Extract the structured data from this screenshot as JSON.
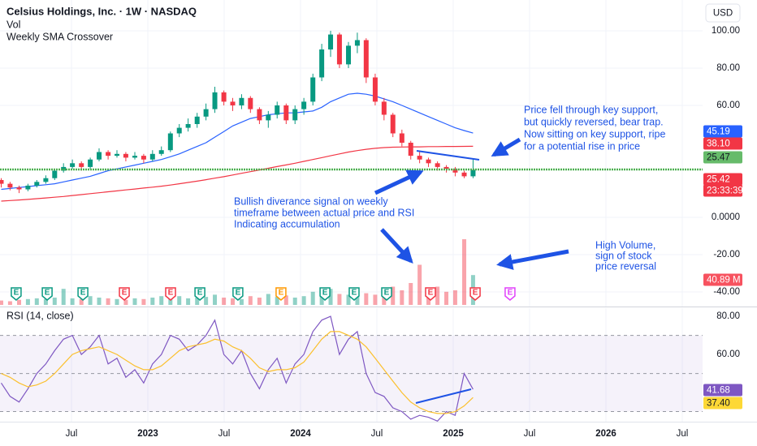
{
  "chart_data": {
    "type": "candlestick",
    "title": "Celsius Holdings, Inc. · 1W · NASDAQ",
    "legend_items": [
      "Vol",
      "Weekly SMA Crossover"
    ],
    "currency": "USD",
    "x": [
      2022.04,
      2022.098,
      2022.157,
      2022.215,
      2022.273,
      2022.332,
      2022.39,
      2022.448,
      2022.506,
      2022.565,
      2022.623,
      2022.681,
      2022.74,
      2022.798,
      2022.856,
      2022.915,
      2022.973,
      2023.031,
      2023.089,
      2023.148,
      2023.206,
      2023.264,
      2023.323,
      2023.381,
      2023.439,
      2023.498,
      2023.556,
      2023.614,
      2023.672,
      2023.731,
      2023.789,
      2023.847,
      2023.906,
      2023.964,
      2024.022,
      2024.081,
      2024.139,
      2024.197,
      2024.255,
      2024.314,
      2024.372,
      2024.43,
      2024.489,
      2024.547,
      2024.605,
      2024.664,
      2024.722,
      2024.78,
      2024.838,
      2024.897,
      2024.955,
      2025.013,
      2025.072,
      2025.13
    ],
    "open": [
      20,
      18,
      16,
      15,
      17,
      19,
      21,
      25,
      27,
      29,
      27,
      31,
      35,
      33,
      34,
      32,
      33,
      31,
      34,
      36,
      45,
      48,
      50,
      54,
      58,
      67,
      62,
      60,
      64,
      58,
      52,
      55,
      60,
      52,
      58,
      62,
      75,
      90,
      98,
      82,
      92,
      95,
      75,
      62,
      55,
      45,
      40,
      33,
      31,
      29,
      27,
      26,
      24,
      22
    ],
    "high": [
      21,
      19,
      17,
      18,
      20,
      22.5,
      26,
      29,
      31,
      30,
      32,
      37,
      36,
      36,
      35,
      35,
      34,
      36,
      38,
      46,
      50,
      53,
      56,
      61,
      70,
      68,
      64,
      66,
      65,
      59,
      57,
      62,
      61,
      60,
      64,
      77,
      93,
      100,
      99,
      94,
      99,
      96,
      77,
      64,
      56,
      47,
      41,
      35,
      32,
      30,
      28,
      27,
      25,
      31
    ],
    "low": [
      16,
      14.5,
      13,
      14,
      16,
      18,
      20,
      24,
      26,
      25,
      26,
      30,
      31,
      32,
      30,
      31,
      29,
      30,
      33,
      35,
      43,
      46,
      48,
      52,
      56,
      60,
      57,
      58,
      56,
      50,
      48,
      53,
      50,
      50,
      55,
      60,
      73,
      86,
      80,
      80,
      88,
      72,
      60,
      52,
      43,
      38,
      31,
      29,
      27,
      25,
      24,
      22,
      21,
      21
    ],
    "close": [
      18,
      16,
      15,
      17,
      19,
      21,
      25,
      27,
      29,
      27,
      31,
      35,
      33,
      34,
      32,
      33,
      31,
      34,
      36,
      45,
      48,
      50,
      54,
      58,
      67,
      62,
      60,
      64,
      58,
      52,
      55,
      60,
      52,
      58,
      62,
      75,
      90,
      98,
      82,
      92,
      95,
      75,
      62,
      55,
      45,
      40,
      33,
      31,
      29,
      27,
      26,
      24,
      22,
      25.47
    ],
    "up_color": "#089981",
    "down_color": "#f23645",
    "volume": {
      "values": [
        6,
        5,
        7,
        8,
        9,
        8,
        10,
        22,
        9,
        8,
        12,
        10,
        9,
        8,
        7,
        9,
        8,
        10,
        12,
        20,
        12,
        9,
        10,
        11,
        14,
        10,
        9,
        8,
        12,
        10,
        15,
        11,
        13,
        10,
        12,
        18,
        16,
        22,
        15,
        14,
        12,
        16,
        14,
        18,
        25,
        20,
        30,
        55,
        22,
        25,
        18,
        20,
        90,
        40.89
      ],
      "lim": [
        0,
        100
      ]
    },
    "sma_lines": [
      {
        "color": "#2962ff",
        "values": [
          15,
          15.5,
          16,
          16.5,
          17,
          17.5,
          18,
          19,
          20,
          21,
          22,
          23.5,
          25,
          26,
          27,
          28,
          29,
          30,
          31,
          32.5,
          34,
          36,
          38,
          40,
          43,
          46,
          49,
          51,
          53,
          54,
          55,
          55.5,
          56,
          56,
          56.5,
          57,
          59,
          62,
          64,
          66,
          66.5,
          66,
          65,
          63.5,
          62,
          60,
          58,
          56,
          54,
          52,
          50,
          48,
          46.5,
          45.19
        ]
      },
      {
        "color": "#f23645",
        "values": [
          8.7,
          9,
          9.3,
          9.6,
          10,
          10.4,
          10.8,
          11.2,
          11.7,
          12.2,
          12.7,
          13.2,
          13.7,
          14.2,
          14.7,
          15.2,
          15.7,
          16.2,
          16.7,
          17.3,
          18,
          18.7,
          19.4,
          20.2,
          21,
          21.8,
          22.7,
          23.6,
          24.5,
          25.4,
          26.3,
          27.2,
          28.1,
          29,
          30,
          31,
          32,
          33,
          34,
          35,
          35.8,
          36.5,
          37,
          37.4,
          37.6,
          37.7,
          37.8,
          37.8,
          37.9,
          37.9,
          38,
          38,
          38.05,
          38.1
        ]
      }
    ],
    "xlim": [
      2022.032,
      2026.633
    ],
    "xticks": [
      {
        "value": 2022.5,
        "label": "Jul"
      },
      2023,
      {
        "value": 2023.5,
        "label": "Jul"
      },
      2024,
      {
        "value": 2024.5,
        "label": "Jul"
      },
      2025,
      {
        "value": 2025.5,
        "label": "Jul"
      },
      2026,
      {
        "value": 2026.5,
        "label": "Jul"
      }
    ],
    "ylim": [
      -47.8,
      116.5
    ],
    "yticks": [
      {
        "value": 100,
        "label": "100.00"
      },
      {
        "value": 80,
        "label": "80.00"
      },
      {
        "value": 60,
        "label": "60.00"
      },
      {
        "value": 0,
        "label": "0.0000"
      },
      {
        "value": -20,
        "label": "-20.00"
      },
      {
        "value": -40,
        "label": "-40.00"
      }
    ],
    "grid": true,
    "badges": [
      {
        "label": "45.19",
        "color": "#2962ff",
        "text_color": "#ffffff"
      },
      {
        "label": "38.10",
        "color": "#f23645",
        "text_color": "#ffffff"
      },
      {
        "label": "25.47",
        "color": "#66bb6a",
        "text_color": "#131722"
      },
      {
        "label": "25.42",
        "color": "#f23645",
        "text_color": "#ffffff"
      },
      {
        "label": "23:33:39",
        "color": "#f23645",
        "text_color": "#ffffff"
      },
      {
        "label": "40.89 M",
        "color": "#f7525f",
        "text_color": "#ffffff"
      }
    ],
    "earnings": {
      "label": "E",
      "x": [
        2022.138,
        2022.341,
        2022.575,
        2022.846,
        2023.149,
        2023.341,
        2023.59,
        2023.872,
        2024.16,
        2024.351,
        2024.564,
        2024.851,
        2025.144,
        2025.372
      ],
      "colors": [
        "#089981",
        "#089981",
        "#089981",
        "#f23645",
        "#f23645",
        "#089981",
        "#089981",
        "#ff9800",
        "#089981",
        "#089981",
        "#089981",
        "#f23645",
        "#f23645",
        "#e040fb"
      ]
    },
    "annotations": [
      {
        "lines": [
          "Price fell through key support,",
          "but quickly reversed, bear trap.",
          "Now sitting on key support, ripe",
          "for a potential rise in price"
        ]
      },
      {
        "lines": [
          "Bullish diverance signal on weekly",
          "timeframe between actual price and RSI",
          "Indicating accumulation"
        ]
      },
      {
        "lines": [
          "High Volume,",
          "sign of stock",
          "price reversal"
        ]
      }
    ],
    "rsi": {
      "title": "RSI (14, close)",
      "color": "#7e57c2",
      "ma_color": "#fbc02d",
      "values": [
        45,
        38,
        35,
        42,
        50,
        55,
        62,
        68,
        70,
        60,
        64,
        70,
        55,
        58,
        48,
        52,
        45,
        55,
        60,
        70,
        68,
        62,
        65,
        70,
        78,
        60,
        55,
        62,
        50,
        42,
        52,
        58,
        45,
        55,
        60,
        72,
        78,
        80,
        60,
        68,
        72,
        50,
        40,
        38,
        32,
        30,
        26,
        28,
        27,
        25,
        30,
        28,
        50,
        41.68
      ],
      "ma_values": [
        50,
        48,
        45,
        43,
        44,
        46,
        50,
        55,
        60,
        62,
        63,
        64,
        62,
        60,
        57,
        54,
        52,
        52,
        54,
        58,
        62,
        64,
        65,
        66,
        68,
        67,
        64,
        62,
        58,
        53,
        51,
        52,
        52,
        53,
        56,
        62,
        68,
        72,
        72,
        70,
        68,
        64,
        58,
        52,
        46,
        40,
        35,
        32,
        30,
        29,
        29,
        30,
        33,
        37.4
      ],
      "ylim": [
        24.7,
        84.3
      ],
      "yticks": [
        {
          "value": 80,
          "label": "80.00"
        },
        {
          "value": 60,
          "label": "60.00"
        }
      ],
      "levels": [
        70,
        50,
        30
      ],
      "badges": [
        {
          "label": "41.68",
          "color": "#7e57c2",
          "text_color": "#ffffff"
        },
        {
          "label": "37.40",
          "color": "#fdd835",
          "text_color": "#131722"
        }
      ]
    }
  }
}
